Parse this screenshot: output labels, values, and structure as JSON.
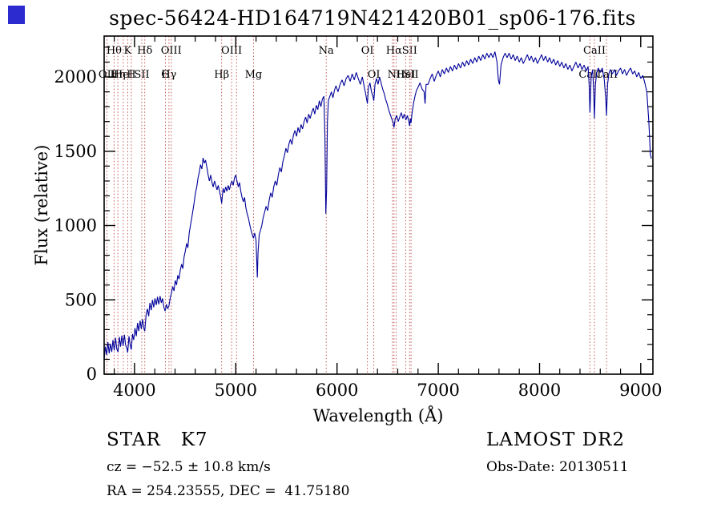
{
  "accents": {
    "corner_square": "#2b2bd0"
  },
  "annotations": {
    "class_label": "STAR   K7",
    "survey": "LAMOST DR2",
    "cz": "cz = −52.5 ± 10.8 km/s",
    "obs_date": "Obs-Date: 20130511",
    "radec": "RA = 254.23555, DEC =  41.75180"
  },
  "chart_data": {
    "type": "line",
    "title": "spec-56424-HD164719N421420B01_sp06-176.fits",
    "xlabel": "Wavelength (Å)",
    "ylabel": "Flux (relative)",
    "xlim": [
      3700,
      9120
    ],
    "ylim": [
      0,
      2275
    ],
    "x_ticks": [
      4000,
      5000,
      6000,
      7000,
      8000,
      9000
    ],
    "y_ticks": [
      0,
      500,
      1000,
      1500,
      2000
    ],
    "x_minor_step": 200,
    "y_minor_step": 100,
    "grid": false,
    "line_color": "#00009a",
    "marker_color": "#bb4444",
    "spectral_lines": [
      {
        "wavelength": 3727,
        "label": "OII",
        "row": 2
      },
      {
        "wavelength": 3798,
        "label": "Hθ",
        "row": 1
      },
      {
        "wavelength": 3835,
        "label": "Hη",
        "row": 2
      },
      {
        "wavelength": 3889,
        "label": "HeI",
        "row": 2
      },
      {
        "wavelength": 3933,
        "label": "K",
        "row": 1
      },
      {
        "wavelength": 3968,
        "label": "H",
        "row": 2
      },
      {
        "wavelength": 4072,
        "label": "SII",
        "row": 2
      },
      {
        "wavelength": 4101,
        "label": "Hδ",
        "row": 1
      },
      {
        "wavelength": 4305,
        "label": "G",
        "row": 2
      },
      {
        "wavelength": 4340,
        "label": "Hγ",
        "row": 2
      },
      {
        "wavelength": 4363,
        "label": "OIII",
        "row": 1
      },
      {
        "wavelength": 4861,
        "label": "Hβ",
        "row": 2
      },
      {
        "wavelength": 4959,
        "label": "OIII",
        "row": 1
      },
      {
        "wavelength": 5007,
        "label": "",
        "row": 1
      },
      {
        "wavelength": 5175,
        "label": "Mg",
        "row": 2
      },
      {
        "wavelength": 5893,
        "label": "Na",
        "row": 1
      },
      {
        "wavelength": 6300,
        "label": "OI",
        "row": 1
      },
      {
        "wavelength": 6363,
        "label": "OI",
        "row": 2
      },
      {
        "wavelength": 6548,
        "label": "",
        "row": 2
      },
      {
        "wavelength": 6563,
        "label": "Hα",
        "row": 1
      },
      {
        "wavelength": 6583,
        "label": "NII",
        "row": 2
      },
      {
        "wavelength": 6678,
        "label": "HeI",
        "row": 2
      },
      {
        "wavelength": 6717,
        "label": "SII",
        "row": 1
      },
      {
        "wavelength": 6731,
        "label": "SII",
        "row": 2
      },
      {
        "wavelength": 8498,
        "label": "CaII",
        "row": 2
      },
      {
        "wavelength": 8542,
        "label": "CaII",
        "row": 1
      },
      {
        "wavelength": 8662,
        "label": "CaII",
        "row": 2
      }
    ],
    "points": [
      [
        3700,
        95
      ],
      [
        3712,
        185
      ],
      [
        3725,
        130
      ],
      [
        3737,
        215
      ],
      [
        3750,
        140
      ],
      [
        3762,
        205
      ],
      [
        3775,
        150
      ],
      [
        3787,
        230
      ],
      [
        3800,
        160
      ],
      [
        3812,
        245
      ],
      [
        3825,
        170
      ],
      [
        3837,
        150
      ],
      [
        3850,
        250
      ],
      [
        3862,
        185
      ],
      [
        3875,
        260
      ],
      [
        3887,
        190
      ],
      [
        3900,
        265
      ],
      [
        3912,
        195
      ],
      [
        3925,
        175
      ],
      [
        3933,
        145
      ],
      [
        3945,
        255
      ],
      [
        3957,
        195
      ],
      [
        3968,
        165
      ],
      [
        3980,
        270
      ],
      [
        3992,
        230
      ],
      [
        4005,
        310
      ],
      [
        4017,
        255
      ],
      [
        4030,
        345
      ],
      [
        4042,
        290
      ],
      [
        4055,
        360
      ],
      [
        4067,
        305
      ],
      [
        4080,
        370
      ],
      [
        4092,
        310
      ],
      [
        4101,
        290
      ],
      [
        4115,
        400
      ],
      [
        4127,
        440
      ],
      [
        4140,
        390
      ],
      [
        4152,
        480
      ],
      [
        4165,
        430
      ],
      [
        4177,
        500
      ],
      [
        4190,
        450
      ],
      [
        4202,
        510
      ],
      [
        4215,
        465
      ],
      [
        4227,
        520
      ],
      [
        4240,
        470
      ],
      [
        4252,
        525
      ],
      [
        4265,
        480
      ],
      [
        4277,
        510
      ],
      [
        4290,
        450
      ],
      [
        4302,
        425
      ],
      [
        4315,
        470
      ],
      [
        4327,
        440
      ],
      [
        4340,
        460
      ],
      [
        4352,
        510
      ],
      [
        4365,
        545
      ],
      [
        4377,
        590
      ],
      [
        4390,
        560
      ],
      [
        4402,
        630
      ],
      [
        4415,
        600
      ],
      [
        4427,
        665
      ],
      [
        4440,
        640
      ],
      [
        4452,
        700
      ],
      [
        4465,
        740
      ],
      [
        4477,
        710
      ],
      [
        4490,
        790
      ],
      [
        4502,
        830
      ],
      [
        4515,
        880
      ],
      [
        4527,
        850
      ],
      [
        4540,
        950
      ],
      [
        4552,
        1000
      ],
      [
        4565,
        1050
      ],
      [
        4577,
        1100
      ],
      [
        4590,
        1160
      ],
      [
        4602,
        1220
      ],
      [
        4615,
        1260
      ],
      [
        4627,
        1320
      ],
      [
        4640,
        1360
      ],
      [
        4652,
        1410
      ],
      [
        4665,
        1380
      ],
      [
        4677,
        1455
      ],
      [
        4690,
        1420
      ],
      [
        4702,
        1440
      ],
      [
        4715,
        1390
      ],
      [
        4727,
        1340
      ],
      [
        4740,
        1300
      ],
      [
        4752,
        1340
      ],
      [
        4765,
        1290
      ],
      [
        4777,
        1260
      ],
      [
        4790,
        1300
      ],
      [
        4802,
        1270
      ],
      [
        4815,
        1240
      ],
      [
        4827,
        1270
      ],
      [
        4840,
        1230
      ],
      [
        4852,
        1190
      ],
      [
        4861,
        1150
      ],
      [
        4875,
        1250
      ],
      [
        4887,
        1220
      ],
      [
        4900,
        1260
      ],
      [
        4912,
        1230
      ],
      [
        4925,
        1270
      ],
      [
        4937,
        1240
      ],
      [
        4950,
        1280
      ],
      [
        4962,
        1300
      ],
      [
        4975,
        1270
      ],
      [
        4987,
        1320
      ],
      [
        5000,
        1340
      ],
      [
        5012,
        1300
      ],
      [
        5025,
        1260
      ],
      [
        5037,
        1290
      ],
      [
        5050,
        1230
      ],
      [
        5062,
        1190
      ],
      [
        5075,
        1160
      ],
      [
        5087,
        1190
      ],
      [
        5100,
        1120
      ],
      [
        5112,
        1080
      ],
      [
        5125,
        1050
      ],
      [
        5137,
        1010
      ],
      [
        5150,
        970
      ],
      [
        5162,
        940
      ],
      [
        5175,
        915
      ],
      [
        5187,
        950
      ],
      [
        5200,
        900
      ],
      [
        5207,
        760
      ],
      [
        5213,
        650
      ],
      [
        5220,
        820
      ],
      [
        5232,
        940
      ],
      [
        5245,
        970
      ],
      [
        5257,
        1000
      ],
      [
        5270,
        1050
      ],
      [
        5285,
        1090
      ],
      [
        5300,
        1130
      ],
      [
        5315,
        1100
      ],
      [
        5330,
        1170
      ],
      [
        5345,
        1220
      ],
      [
        5360,
        1190
      ],
      [
        5375,
        1260
      ],
      [
        5390,
        1300
      ],
      [
        5405,
        1270
      ],
      [
        5420,
        1340
      ],
      [
        5435,
        1390
      ],
      [
        5450,
        1360
      ],
      [
        5465,
        1430
      ],
      [
        5480,
        1470
      ],
      [
        5495,
        1520
      ],
      [
        5510,
        1490
      ],
      [
        5525,
        1550
      ],
      [
        5540,
        1580
      ],
      [
        5555,
        1545
      ],
      [
        5570,
        1610
      ],
      [
        5585,
        1640
      ],
      [
        5600,
        1600
      ],
      [
        5615,
        1660
      ],
      [
        5630,
        1625
      ],
      [
        5645,
        1680
      ],
      [
        5660,
        1650
      ],
      [
        5675,
        1700
      ],
      [
        5690,
        1730
      ],
      [
        5705,
        1690
      ],
      [
        5720,
        1750
      ],
      [
        5735,
        1720
      ],
      [
        5750,
        1760
      ],
      [
        5765,
        1790
      ],
      [
        5780,
        1750
      ],
      [
        5795,
        1810
      ],
      [
        5810,
        1780
      ],
      [
        5825,
        1840
      ],
      [
        5840,
        1800
      ],
      [
        5855,
        1850
      ],
      [
        5870,
        1870
      ],
      [
        5881,
        1600
      ],
      [
        5889,
        1080
      ],
      [
        5897,
        1240
      ],
      [
        5905,
        1700
      ],
      [
        5915,
        1840
      ],
      [
        5930,
        1870
      ],
      [
        5945,
        1900
      ],
      [
        5960,
        1860
      ],
      [
        5975,
        1910
      ],
      [
        5990,
        1940
      ],
      [
        6010,
        1900
      ],
      [
        6030,
        1950
      ],
      [
        6050,
        1980
      ],
      [
        6070,
        1940
      ],
      [
        6090,
        1990
      ],
      [
        6110,
        2010
      ],
      [
        6130,
        1970
      ],
      [
        6150,
        2020
      ],
      [
        6170,
        1980
      ],
      [
        6190,
        2030
      ],
      [
        6210,
        1990
      ],
      [
        6230,
        1950
      ],
      [
        6250,
        2000
      ],
      [
        6270,
        1930
      ],
      [
        6285,
        1880
      ],
      [
        6300,
        1820
      ],
      [
        6310,
        1930
      ],
      [
        6325,
        1960
      ],
      [
        6340,
        1900
      ],
      [
        6355,
        1870
      ],
      [
        6363,
        1840
      ],
      [
        6375,
        1950
      ],
      [
        6390,
        1990
      ],
      [
        6405,
        1950
      ],
      [
        6420,
        2000
      ],
      [
        6435,
        1960
      ],
      [
        6450,
        1920
      ],
      [
        6465,
        1890
      ],
      [
        6480,
        1850
      ],
      [
        6495,
        1820
      ],
      [
        6510,
        1780
      ],
      [
        6525,
        1750
      ],
      [
        6540,
        1720
      ],
      [
        6555,
        1690
      ],
      [
        6563,
        1660
      ],
      [
        6575,
        1720
      ],
      [
        6590,
        1740
      ],
      [
        6605,
        1700
      ],
      [
        6620,
        1730
      ],
      [
        6635,
        1760
      ],
      [
        6650,
        1720
      ],
      [
        6665,
        1750
      ],
      [
        6680,
        1710
      ],
      [
        6695,
        1740
      ],
      [
        6710,
        1700
      ],
      [
        6717,
        1670
      ],
      [
        6725,
        1720
      ],
      [
        6731,
        1690
      ],
      [
        6740,
        1750
      ],
      [
        6755,
        1820
      ],
      [
        6770,
        1870
      ],
      [
        6785,
        1910
      ],
      [
        6800,
        1930
      ],
      [
        6820,
        1960
      ],
      [
        6840,
        1920
      ],
      [
        6860,
        1900
      ],
      [
        6870,
        1820
      ],
      [
        6880,
        1950
      ],
      [
        6900,
        1950
      ],
      [
        6920,
        1990
      ],
      [
        6940,
        2020
      ],
      [
        6960,
        1970
      ],
      [
        6980,
        2010
      ],
      [
        7000,
        2040
      ],
      [
        7020,
        2000
      ],
      [
        7040,
        2050
      ],
      [
        7060,
        2020
      ],
      [
        7080,
        2060
      ],
      [
        7100,
        2030
      ],
      [
        7120,
        2070
      ],
      [
        7140,
        2040
      ],
      [
        7160,
        2080
      ],
      [
        7180,
        2050
      ],
      [
        7200,
        2090
      ],
      [
        7220,
        2060
      ],
      [
        7240,
        2100
      ],
      [
        7260,
        2070
      ],
      [
        7280,
        2110
      ],
      [
        7300,
        2080
      ],
      [
        7320,
        2120
      ],
      [
        7340,
        2090
      ],
      [
        7360,
        2130
      ],
      [
        7380,
        2100
      ],
      [
        7400,
        2140
      ],
      [
        7420,
        2110
      ],
      [
        7440,
        2150
      ],
      [
        7460,
        2120
      ],
      [
        7480,
        2160
      ],
      [
        7500,
        2130
      ],
      [
        7520,
        2160
      ],
      [
        7540,
        2130
      ],
      [
        7560,
        2170
      ],
      [
        7580,
        2100
      ],
      [
        7594,
        1980
      ],
      [
        7605,
        1950
      ],
      [
        7620,
        2080
      ],
      [
        7640,
        2130
      ],
      [
        7660,
        2160
      ],
      [
        7680,
        2130
      ],
      [
        7700,
        2160
      ],
      [
        7720,
        2120
      ],
      [
        7740,
        2150
      ],
      [
        7760,
        2110
      ],
      [
        7780,
        2140
      ],
      [
        7800,
        2100
      ],
      [
        7820,
        2130
      ],
      [
        7840,
        2090
      ],
      [
        7860,
        2120
      ],
      [
        7880,
        2150
      ],
      [
        7900,
        2110
      ],
      [
        7920,
        2140
      ],
      [
        7940,
        2100
      ],
      [
        7960,
        2130
      ],
      [
        7980,
        2090
      ],
      [
        8000,
        2120
      ],
      [
        8020,
        2150
      ],
      [
        8040,
        2110
      ],
      [
        8060,
        2140
      ],
      [
        8080,
        2100
      ],
      [
        8100,
        2130
      ],
      [
        8120,
        2090
      ],
      [
        8140,
        2120
      ],
      [
        8160,
        2080
      ],
      [
        8180,
        2110
      ],
      [
        8200,
        2070
      ],
      [
        8220,
        2100
      ],
      [
        8240,
        2060
      ],
      [
        8260,
        2090
      ],
      [
        8280,
        2050
      ],
      [
        8300,
        2080
      ],
      [
        8320,
        2040
      ],
      [
        8340,
        2070
      ],
      [
        8360,
        2100
      ],
      [
        8380,
        2060
      ],
      [
        8400,
        2090
      ],
      [
        8420,
        2050
      ],
      [
        8440,
        2080
      ],
      [
        8460,
        2040
      ],
      [
        8480,
        2070
      ],
      [
        8490,
        1950
      ],
      [
        8498,
        1760
      ],
      [
        8510,
        2000
      ],
      [
        8525,
        2050
      ],
      [
        8535,
        1900
      ],
      [
        8542,
        1720
      ],
      [
        8552,
        1950
      ],
      [
        8565,
        2030
      ],
      [
        8580,
        2060
      ],
      [
        8600,
        2030
      ],
      [
        8620,
        2060
      ],
      [
        8640,
        1980
      ],
      [
        8655,
        1850
      ],
      [
        8662,
        1740
      ],
      [
        8672,
        1950
      ],
      [
        8685,
        2020
      ],
      [
        8700,
        2050
      ],
      [
        8720,
        2020
      ],
      [
        8740,
        2050
      ],
      [
        8760,
        2010
      ],
      [
        8780,
        2040
      ],
      [
        8800,
        2060
      ],
      [
        8820,
        2020
      ],
      [
        8840,
        2050
      ],
      [
        8860,
        2010
      ],
      [
        8880,
        2040
      ],
      [
        8900,
        2060
      ],
      [
        8920,
        2020
      ],
      [
        8940,
        2040
      ],
      [
        8960,
        2000
      ],
      [
        8980,
        2030
      ],
      [
        9000,
        1990
      ],
      [
        9020,
        2010
      ],
      [
        9040,
        1960
      ],
      [
        9060,
        1900
      ],
      [
        9080,
        1700
      ],
      [
        9095,
        1480
      ],
      [
        9105,
        1450
      ]
    ]
  }
}
